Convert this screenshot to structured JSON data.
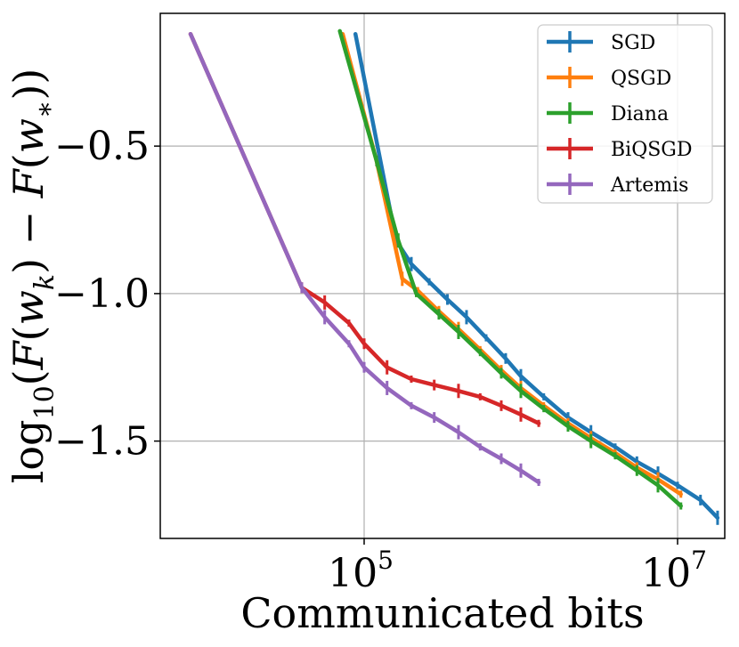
{
  "chart_data": {
    "type": "line",
    "title": "",
    "xlabel": "Communicated bits",
    "ylabel": "log10(F(w_k) − F(w_*))",
    "xscale": "log",
    "xlim": [
      5000,
      20000000
    ],
    "ylim": [
      -1.83,
      -0.05
    ],
    "grid": true,
    "legend_position": "top-right",
    "x_ticks": [
      {
        "value": 100000,
        "label": "10^5",
        "base": "10",
        "exp": "5"
      },
      {
        "value": 10000000,
        "label": "10^7",
        "base": "10",
        "exp": "7"
      }
    ],
    "y_ticks": [
      {
        "value": -0.5,
        "label": "−0.5"
      },
      {
        "value": -1.0,
        "label": "−1.0"
      },
      {
        "value": -1.5,
        "label": "−1.5"
      }
    ],
    "series": [
      {
        "name": "SGD",
        "color": "#1f77b4",
        "x": [
          88000,
          160000,
          200000,
          260000,
          340000,
          450000,
          600000,
          800000,
          1000000,
          1400000,
          2000000,
          2800000,
          4000000,
          5500000,
          7500000,
          10000000,
          14000000,
          18000000
        ],
        "y": [
          -0.12,
          -0.82,
          -0.9,
          -0.96,
          -1.02,
          -1.08,
          -1.15,
          -1.22,
          -1.28,
          -1.35,
          -1.42,
          -1.47,
          -1.52,
          -1.57,
          -1.61,
          -1.65,
          -1.7,
          -1.76
        ]
      },
      {
        "name": "QSGD",
        "color": "#ff7f0e",
        "x": [
          73000,
          120000,
          175000,
          220000,
          300000,
          400000,
          550000,
          750000,
          1000000,
          1400000,
          2000000,
          2800000,
          4000000,
          5500000,
          7500000,
          10500000
        ],
        "y": [
          -0.12,
          -0.55,
          -0.95,
          -0.99,
          -1.06,
          -1.12,
          -1.19,
          -1.26,
          -1.32,
          -1.38,
          -1.44,
          -1.49,
          -1.54,
          -1.59,
          -1.63,
          -1.68
        ]
      },
      {
        "name": "Diana",
        "color": "#2ca02c",
        "x": [
          70000,
          120000,
          165000,
          215000,
          300000,
          400000,
          550000,
          750000,
          1000000,
          1400000,
          2000000,
          2800000,
          4000000,
          5500000,
          7500000,
          10500000
        ],
        "y": [
          -0.11,
          -0.55,
          -0.82,
          -1.0,
          -1.07,
          -1.13,
          -1.2,
          -1.27,
          -1.33,
          -1.39,
          -1.45,
          -1.5,
          -1.55,
          -1.6,
          -1.65,
          -1.72
        ]
      },
      {
        "name": "BiQSGD",
        "color": "#d62728",
        "x": [
          7800,
          40000,
          56000,
          80000,
          100000,
          140000,
          200000,
          280000,
          400000,
          550000,
          750000,
          1000000,
          1300000
        ],
        "y": [
          -0.12,
          -0.98,
          -1.03,
          -1.1,
          -1.17,
          -1.25,
          -1.29,
          -1.31,
          -1.33,
          -1.35,
          -1.38,
          -1.41,
          -1.44
        ]
      },
      {
        "name": "Artemis",
        "color": "#9467bd",
        "x": [
          7800,
          40000,
          56000,
          80000,
          100000,
          140000,
          200000,
          280000,
          400000,
          550000,
          750000,
          1000000,
          1300000
        ],
        "y": [
          -0.12,
          -0.98,
          -1.08,
          -1.17,
          -1.25,
          -1.32,
          -1.38,
          -1.42,
          -1.47,
          -1.52,
          -1.56,
          -1.6,
          -1.64
        ]
      }
    ]
  }
}
